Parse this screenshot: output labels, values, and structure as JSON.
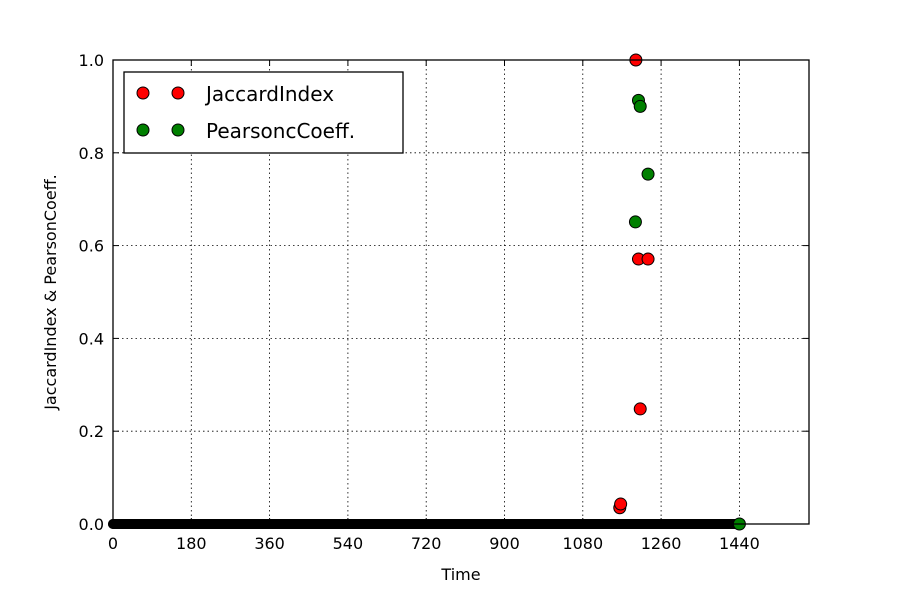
{
  "chart_data": {
    "type": "scatter",
    "title": "",
    "xlabel": "Time",
    "ylabel": "JaccardIndex  &  PearsonCoeff.",
    "xlim": [
      0,
      1600
    ],
    "ylim": [
      0.0,
      1.0
    ],
    "x_ticks": [
      0,
      180,
      360,
      540,
      720,
      900,
      1080,
      1260,
      1440
    ],
    "y_ticks": [
      "0.0",
      "0.2",
      "0.4",
      "0.6",
      "0.8",
      "1.0"
    ],
    "grid": true,
    "legend_position": "top-left",
    "series": [
      {
        "name": "JaccardIndex",
        "color": "#ff0000",
        "marker": "circle",
        "points": [
          [
            1165,
            0.035
          ],
          [
            1167,
            0.043
          ],
          [
            1202,
            1.0
          ],
          [
            1208,
            0.571
          ],
          [
            1212,
            0.248
          ],
          [
            1230,
            0.571
          ]
        ],
        "zero_run": {
          "from": 0,
          "to": 1440,
          "value": 0.0
        }
      },
      {
        "name": "PearsoncCoeff.",
        "color": "#008000",
        "marker": "circle",
        "points": [
          [
            1201,
            0.651
          ],
          [
            1208,
            0.913
          ],
          [
            1212,
            0.9
          ],
          [
            1230,
            0.754
          ],
          [
            1440,
            0.0
          ]
        ],
        "zero_run": {
          "from": 0,
          "to": 1440,
          "value": 0.0
        }
      }
    ]
  }
}
